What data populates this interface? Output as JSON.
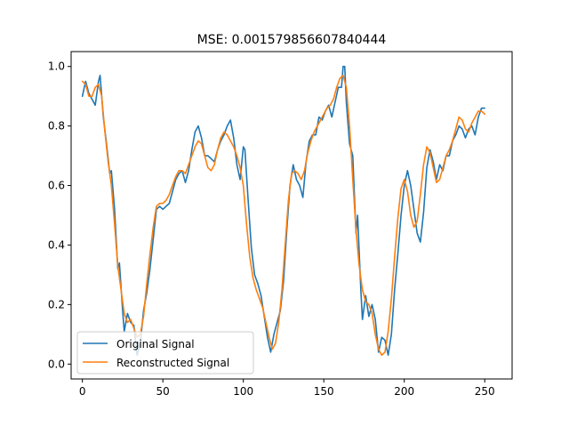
{
  "chart_data": {
    "type": "line",
    "title": "MSE: 0.001579856607840444",
    "xlabel": "",
    "ylabel": "",
    "xlim": [
      -7,
      267
    ],
    "ylim": [
      -0.05,
      1.05
    ],
    "x_ticks": [
      0,
      50,
      100,
      150,
      200,
      250
    ],
    "y_ticks": [
      0.0,
      0.2,
      0.4,
      0.6,
      0.8,
      1.0
    ],
    "x_tick_labels": [
      "0",
      "50",
      "100",
      "150",
      "200",
      "250"
    ],
    "y_tick_labels": [
      "0.0",
      "0.2",
      "0.4",
      "0.6",
      "0.8",
      "1.0"
    ],
    "legend_position": "lower-left",
    "grid": false,
    "series": [
      {
        "name": "Original Signal",
        "color": "#1f77b4",
        "points": [
          [
            0,
            0.9
          ],
          [
            2,
            0.95
          ],
          [
            4,
            0.91
          ],
          [
            6,
            0.89
          ],
          [
            8,
            0.87
          ],
          [
            10,
            0.95
          ],
          [
            11,
            0.97
          ],
          [
            13,
            0.83
          ],
          [
            15,
            0.74
          ],
          [
            17,
            0.64
          ],
          [
            18,
            0.65
          ],
          [
            20,
            0.52
          ],
          [
            22,
            0.32
          ],
          [
            23,
            0.34
          ],
          [
            25,
            0.18
          ],
          [
            26,
            0.11
          ],
          [
            28,
            0.17
          ],
          [
            30,
            0.14
          ],
          [
            32,
            0.13
          ],
          [
            34,
            0.03
          ],
          [
            36,
            0.07
          ],
          [
            38,
            0.18
          ],
          [
            40,
            0.24
          ],
          [
            42,
            0.32
          ],
          [
            44,
            0.42
          ],
          [
            46,
            0.52
          ],
          [
            48,
            0.53
          ],
          [
            50,
            0.52
          ],
          [
            52,
            0.53
          ],
          [
            54,
            0.54
          ],
          [
            56,
            0.58
          ],
          [
            58,
            0.62
          ],
          [
            60,
            0.64
          ],
          [
            62,
            0.65
          ],
          [
            64,
            0.61
          ],
          [
            66,
            0.65
          ],
          [
            68,
            0.72
          ],
          [
            70,
            0.78
          ],
          [
            72,
            0.8
          ],
          [
            74,
            0.76
          ],
          [
            76,
            0.7
          ],
          [
            78,
            0.7
          ],
          [
            80,
            0.69
          ],
          [
            82,
            0.68
          ],
          [
            84,
            0.72
          ],
          [
            86,
            0.75
          ],
          [
            88,
            0.77
          ],
          [
            90,
            0.8
          ],
          [
            92,
            0.82
          ],
          [
            94,
            0.76
          ],
          [
            96,
            0.67
          ],
          [
            98,
            0.62
          ],
          [
            100,
            0.73
          ],
          [
            101,
            0.72
          ],
          [
            103,
            0.55
          ],
          [
            105,
            0.39
          ],
          [
            107,
            0.3
          ],
          [
            109,
            0.27
          ],
          [
            111,
            0.23
          ],
          [
            113,
            0.16
          ],
          [
            115,
            0.09
          ],
          [
            117,
            0.04
          ],
          [
            119,
            0.1
          ],
          [
            121,
            0.14
          ],
          [
            123,
            0.18
          ],
          [
            125,
            0.28
          ],
          [
            127,
            0.45
          ],
          [
            129,
            0.6
          ],
          [
            131,
            0.67
          ],
          [
            133,
            0.62
          ],
          [
            135,
            0.6
          ],
          [
            137,
            0.56
          ],
          [
            139,
            0.68
          ],
          [
            141,
            0.75
          ],
          [
            143,
            0.77
          ],
          [
            145,
            0.77
          ],
          [
            147,
            0.83
          ],
          [
            149,
            0.82
          ],
          [
            151,
            0.85
          ],
          [
            153,
            0.87
          ],
          [
            155,
            0.83
          ],
          [
            157,
            0.88
          ],
          [
            159,
            0.93
          ],
          [
            161,
            0.93
          ],
          [
            162,
            1.0
          ],
          [
            163,
            1.0
          ],
          [
            164,
            0.88
          ],
          [
            166,
            0.74
          ],
          [
            168,
            0.7
          ],
          [
            170,
            0.44
          ],
          [
            171,
            0.5
          ],
          [
            173,
            0.25
          ],
          [
            174,
            0.15
          ],
          [
            176,
            0.23
          ],
          [
            178,
            0.16
          ],
          [
            180,
            0.2
          ],
          [
            182,
            0.15
          ],
          [
            184,
            0.04
          ],
          [
            186,
            0.09
          ],
          [
            188,
            0.08
          ],
          [
            190,
            0.03
          ],
          [
            192,
            0.1
          ],
          [
            194,
            0.25
          ],
          [
            196,
            0.37
          ],
          [
            198,
            0.5
          ],
          [
            200,
            0.6
          ],
          [
            202,
            0.65
          ],
          [
            204,
            0.6
          ],
          [
            206,
            0.52
          ],
          [
            208,
            0.44
          ],
          [
            210,
            0.41
          ],
          [
            212,
            0.51
          ],
          [
            214,
            0.66
          ],
          [
            216,
            0.72
          ],
          [
            218,
            0.68
          ],
          [
            220,
            0.62
          ],
          [
            222,
            0.67
          ],
          [
            224,
            0.65
          ],
          [
            226,
            0.7
          ],
          [
            228,
            0.7
          ],
          [
            230,
            0.75
          ],
          [
            232,
            0.77
          ],
          [
            234,
            0.8
          ],
          [
            236,
            0.79
          ],
          [
            238,
            0.76
          ],
          [
            240,
            0.79
          ],
          [
            242,
            0.8
          ],
          [
            244,
            0.77
          ],
          [
            246,
            0.83
          ],
          [
            248,
            0.86
          ],
          [
            250,
            0.86
          ]
        ]
      },
      {
        "name": "Reconstructed Signal",
        "color": "#ff7f0e",
        "points": [
          [
            0,
            0.95
          ],
          [
            2,
            0.94
          ],
          [
            4,
            0.9
          ],
          [
            6,
            0.9
          ],
          [
            8,
            0.93
          ],
          [
            10,
            0.94
          ],
          [
            12,
            0.9
          ],
          [
            14,
            0.78
          ],
          [
            16,
            0.68
          ],
          [
            18,
            0.6
          ],
          [
            20,
            0.47
          ],
          [
            22,
            0.33
          ],
          [
            24,
            0.25
          ],
          [
            26,
            0.17
          ],
          [
            28,
            0.14
          ],
          [
            30,
            0.15
          ],
          [
            32,
            0.12
          ],
          [
            34,
            0.09
          ],
          [
            36,
            0.1
          ],
          [
            38,
            0.16
          ],
          [
            40,
            0.27
          ],
          [
            42,
            0.37
          ],
          [
            44,
            0.46
          ],
          [
            46,
            0.53
          ],
          [
            48,
            0.54
          ],
          [
            50,
            0.54
          ],
          [
            52,
            0.55
          ],
          [
            54,
            0.57
          ],
          [
            56,
            0.6
          ],
          [
            58,
            0.63
          ],
          [
            60,
            0.65
          ],
          [
            62,
            0.65
          ],
          [
            64,
            0.64
          ],
          [
            66,
            0.67
          ],
          [
            68,
            0.7
          ],
          [
            70,
            0.73
          ],
          [
            72,
            0.75
          ],
          [
            74,
            0.74
          ],
          [
            76,
            0.7
          ],
          [
            78,
            0.66
          ],
          [
            80,
            0.65
          ],
          [
            82,
            0.67
          ],
          [
            84,
            0.72
          ],
          [
            86,
            0.76
          ],
          [
            88,
            0.78
          ],
          [
            90,
            0.77
          ],
          [
            92,
            0.75
          ],
          [
            94,
            0.73
          ],
          [
            96,
            0.7
          ],
          [
            98,
            0.66
          ],
          [
            100,
            0.6
          ],
          [
            102,
            0.47
          ],
          [
            104,
            0.36
          ],
          [
            106,
            0.29
          ],
          [
            108,
            0.25
          ],
          [
            110,
            0.22
          ],
          [
            112,
            0.19
          ],
          [
            114,
            0.14
          ],
          [
            116,
            0.09
          ],
          [
            118,
            0.05
          ],
          [
            120,
            0.07
          ],
          [
            122,
            0.14
          ],
          [
            124,
            0.25
          ],
          [
            126,
            0.4
          ],
          [
            128,
            0.55
          ],
          [
            130,
            0.64
          ],
          [
            132,
            0.65
          ],
          [
            134,
            0.64
          ],
          [
            136,
            0.62
          ],
          [
            138,
            0.65
          ],
          [
            140,
            0.71
          ],
          [
            142,
            0.75
          ],
          [
            144,
            0.78
          ],
          [
            146,
            0.8
          ],
          [
            148,
            0.82
          ],
          [
            150,
            0.84
          ],
          [
            152,
            0.86
          ],
          [
            154,
            0.87
          ],
          [
            156,
            0.89
          ],
          [
            158,
            0.93
          ],
          [
            160,
            0.96
          ],
          [
            162,
            0.97
          ],
          [
            164,
            0.93
          ],
          [
            166,
            0.8
          ],
          [
            168,
            0.62
          ],
          [
            170,
            0.45
          ],
          [
            172,
            0.33
          ],
          [
            174,
            0.25
          ],
          [
            176,
            0.21
          ],
          [
            178,
            0.2
          ],
          [
            180,
            0.17
          ],
          [
            182,
            0.1
          ],
          [
            184,
            0.05
          ],
          [
            186,
            0.03
          ],
          [
            188,
            0.04
          ],
          [
            190,
            0.11
          ],
          [
            192,
            0.22
          ],
          [
            194,
            0.36
          ],
          [
            196,
            0.49
          ],
          [
            198,
            0.59
          ],
          [
            200,
            0.62
          ],
          [
            202,
            0.58
          ],
          [
            204,
            0.5
          ],
          [
            206,
            0.46
          ],
          [
            208,
            0.48
          ],
          [
            210,
            0.57
          ],
          [
            212,
            0.67
          ],
          [
            214,
            0.73
          ],
          [
            216,
            0.71
          ],
          [
            218,
            0.66
          ],
          [
            220,
            0.61
          ],
          [
            222,
            0.62
          ],
          [
            224,
            0.66
          ],
          [
            226,
            0.7
          ],
          [
            228,
            0.72
          ],
          [
            230,
            0.75
          ],
          [
            232,
            0.79
          ],
          [
            234,
            0.83
          ],
          [
            236,
            0.82
          ],
          [
            238,
            0.79
          ],
          [
            240,
            0.78
          ],
          [
            242,
            0.81
          ],
          [
            244,
            0.83
          ],
          [
            246,
            0.85
          ],
          [
            248,
            0.85
          ],
          [
            250,
            0.84
          ]
        ]
      }
    ]
  }
}
